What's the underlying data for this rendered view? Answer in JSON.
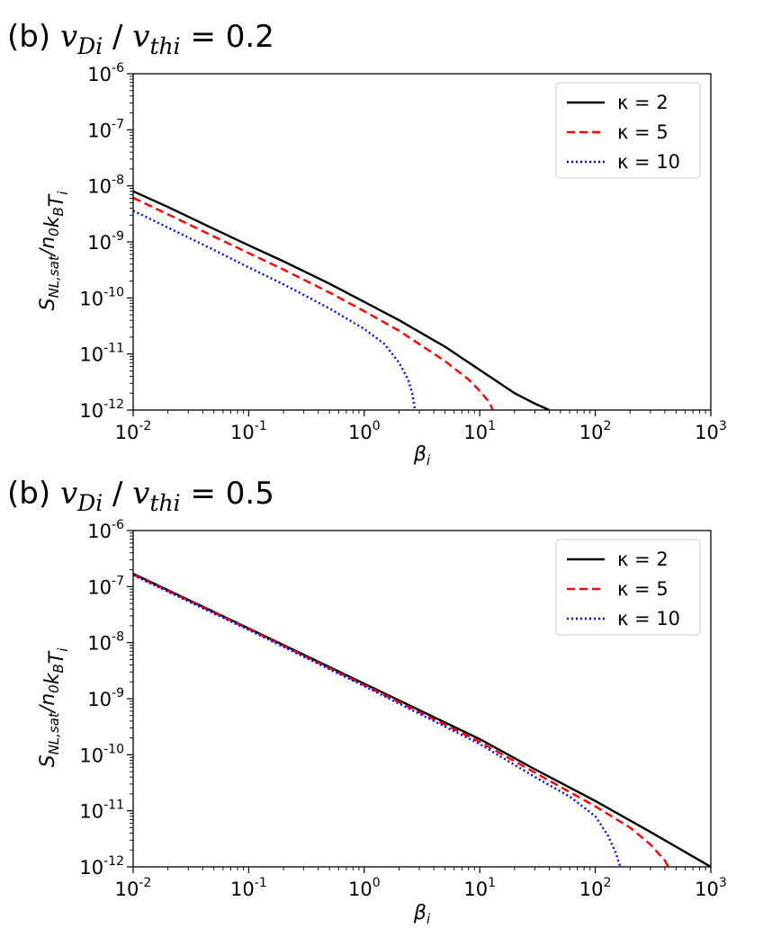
{
  "chart_data": [
    {
      "type": "line",
      "panel_label": "(b)",
      "title_ratio": "v_Di / v_thi",
      "title_value": "0.2",
      "xlabel": "β_i",
      "ylabel": "S_NL,sat / n_0 k_B T_i",
      "xscale": "log",
      "yscale": "log",
      "xlim": [
        0.01,
        1000
      ],
      "ylim": [
        1e-12,
        1e-06
      ],
      "legend_location": "upper right",
      "grid": false,
      "xtick_exponents": [
        "-2",
        "-1",
        "0",
        "1",
        "2",
        "3"
      ],
      "ytick_exponents": [
        "-12",
        "-11",
        "-10",
        "-9",
        "-8",
        "-7",
        "-6"
      ],
      "series": [
        {
          "name": "κ = 2",
          "color": "#000000",
          "style": "solid",
          "points": [
            [
              0.01,
              8e-09
            ],
            [
              0.02,
              4.2e-09
            ],
            [
              0.05,
              1.7e-09
            ],
            [
              0.1,
              8.7e-10
            ],
            [
              0.2,
              4.5e-10
            ],
            [
              0.5,
              1.8e-10
            ],
            [
              1,
              8.5e-11
            ],
            [
              2,
              4e-11
            ],
            [
              5,
              1.35e-11
            ],
            [
              10,
              5.2e-12
            ],
            [
              20,
              2e-12
            ],
            [
              30,
              1.3e-12
            ],
            [
              40,
              1e-12
            ]
          ]
        },
        {
          "name": "κ = 5",
          "color": "#ff0000",
          "style": "dashed",
          "points": [
            [
              0.01,
              6.1e-09
            ],
            [
              0.02,
              3.1e-09
            ],
            [
              0.05,
              1.25e-09
            ],
            [
              0.1,
              6.3e-10
            ],
            [
              0.2,
              3.2e-10
            ],
            [
              0.5,
              1.25e-10
            ],
            [
              1,
              5.8e-11
            ],
            [
              2,
              2.6e-11
            ],
            [
              5,
              7.5e-12
            ],
            [
              8,
              3.5e-12
            ],
            [
              10,
              2.2e-12
            ],
            [
              12,
              1.4e-12
            ],
            [
              13,
              1e-12
            ]
          ]
        },
        {
          "name": "κ = 10",
          "color": "#0000ff",
          "style": "dotted",
          "points": [
            [
              0.01,
              3.6e-09
            ],
            [
              0.02,
              1.8e-09
            ],
            [
              0.05,
              7.2e-10
            ],
            [
              0.1,
              3.5e-10
            ],
            [
              0.2,
              1.75e-10
            ],
            [
              0.5,
              6.5e-11
            ],
            [
              1,
              2.8e-11
            ],
            [
              1.5,
              1.5e-11
            ],
            [
              2,
              7e-12
            ],
            [
              2.4,
              3.5e-12
            ],
            [
              2.6,
              2e-12
            ],
            [
              2.75,
              1e-12
            ]
          ]
        }
      ]
    },
    {
      "type": "line",
      "panel_label": "(b)",
      "title_ratio": "v_Di / v_thi",
      "title_value": "0.5",
      "xlabel": "β_i",
      "ylabel": "S_NL,sat / n_0 k_B T_i",
      "xscale": "log",
      "yscale": "log",
      "xlim": [
        0.01,
        1000
      ],
      "ylim": [
        1e-12,
        1e-06
      ],
      "legend_location": "upper right",
      "grid": false,
      "xtick_exponents": [
        "-2",
        "-1",
        "0",
        "1",
        "2",
        "3"
      ],
      "ytick_exponents": [
        "-12",
        "-11",
        "-10",
        "-9",
        "-8",
        "-7",
        "-6"
      ],
      "series": [
        {
          "name": "κ = 2",
          "color": "#000000",
          "style": "solid",
          "points": [
            [
              0.01,
              1.7e-07
            ],
            [
              0.1,
              1.8e-08
            ],
            [
              1,
              1.85e-09
            ],
            [
              10,
              1.9e-10
            ],
            [
              30,
              5.5e-11
            ],
            [
              100,
              1.5e-11
            ],
            [
              300,
              4.2e-12
            ],
            [
              1000,
              1e-12
            ]
          ]
        },
        {
          "name": "κ = 5",
          "color": "#ff0000",
          "style": "dashed",
          "points": [
            [
              0.01,
              1.65e-07
            ],
            [
              0.1,
              1.75e-08
            ],
            [
              1,
              1.75e-09
            ],
            [
              10,
              1.7e-10
            ],
            [
              30,
              4.8e-11
            ],
            [
              100,
              1.2e-11
            ],
            [
              200,
              5e-12
            ],
            [
              300,
              2.5e-12
            ],
            [
              400,
              1.3e-12
            ],
            [
              430,
              1e-12
            ]
          ]
        },
        {
          "name": "κ = 10",
          "color": "#0000ff",
          "style": "dotted",
          "points": [
            [
              0.01,
              1.6e-07
            ],
            [
              0.1,
              1.68e-08
            ],
            [
              1,
              1.68e-09
            ],
            [
              10,
              1.55e-10
            ],
            [
              30,
              4e-11
            ],
            [
              60,
              1.8e-11
            ],
            [
              100,
              8e-12
            ],
            [
              130,
              3.5e-12
            ],
            [
              150,
              1.8e-12
            ],
            [
              165,
              1e-12
            ]
          ]
        }
      ]
    }
  ]
}
